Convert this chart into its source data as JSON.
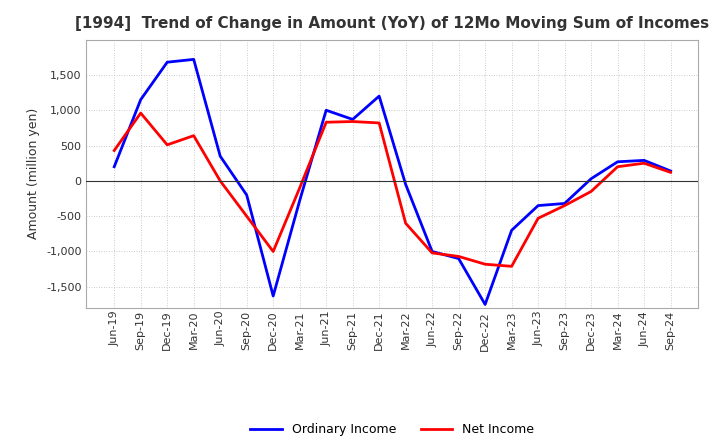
{
  "title": "[1994]  Trend of Change in Amount (YoY) of 12Mo Moving Sum of Incomes",
  "ylabel": "Amount (million yen)",
  "background_color": "#ffffff",
  "grid_color": "#aaaaaa",
  "x_labels": [
    "Jun-19",
    "Sep-19",
    "Dec-19",
    "Mar-20",
    "Jun-20",
    "Sep-20",
    "Dec-20",
    "Mar-21",
    "Jun-21",
    "Sep-21",
    "Dec-21",
    "Mar-22",
    "Jun-22",
    "Sep-22",
    "Dec-22",
    "Mar-23",
    "Jun-23",
    "Sep-23",
    "Dec-23",
    "Mar-24",
    "Jun-24",
    "Sep-24"
  ],
  "ordinary_income": [
    200,
    1150,
    1680,
    1720,
    350,
    -200,
    -1630,
    -280,
    1000,
    870,
    1200,
    -50,
    -1000,
    -1100,
    -1750,
    -700,
    -350,
    -320,
    30,
    270,
    290,
    140
  ],
  "net_income": [
    430,
    960,
    510,
    640,
    0,
    -500,
    -1000,
    -100,
    830,
    840,
    820,
    -600,
    -1020,
    -1070,
    -1180,
    -1210,
    -530,
    -350,
    -150,
    200,
    250,
    120
  ],
  "ylim": [
    -1800,
    2000
  ],
  "yticks": [
    -1500,
    -1000,
    -500,
    0,
    500,
    1000,
    1500
  ],
  "line_color_ordinary": "#0000ff",
  "line_color_net": "#ff0000",
  "line_width": 2.0,
  "title_fontsize": 11,
  "ylabel_fontsize": 9,
  "tick_fontsize": 8,
  "legend_fontsize": 9
}
